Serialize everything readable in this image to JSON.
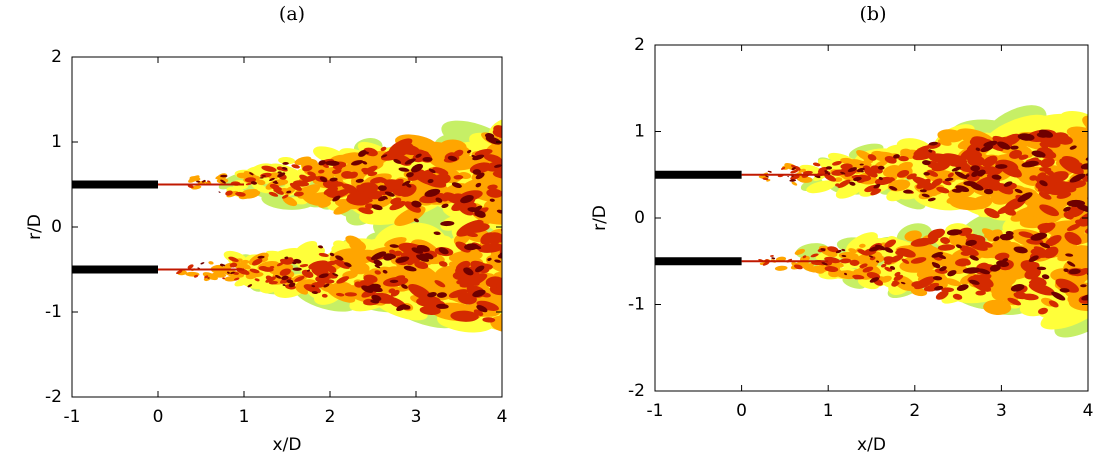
{
  "chart_data": [
    {
      "type": "field",
      "title": "(a)",
      "x_label": "x/D",
      "y_label": "r/D",
      "xlim": [
        -1,
        4
      ],
      "ylim": [
        -2,
        2
      ],
      "xticks": [
        -1,
        0,
        1,
        2,
        3,
        4
      ],
      "yticks": [
        -2,
        -1,
        0,
        1,
        2
      ]
    },
    {
      "type": "field",
      "title": "(b)",
      "x_label": "x/D",
      "y_label": "r/D",
      "xlim": [
        -1,
        4
      ],
      "ylim": [
        -2,
        2
      ],
      "xticks": [
        -1,
        0,
        1,
        2,
        3,
        4
      ],
      "yticks": [
        -2,
        -1,
        0,
        1,
        2
      ]
    }
  ]
}
